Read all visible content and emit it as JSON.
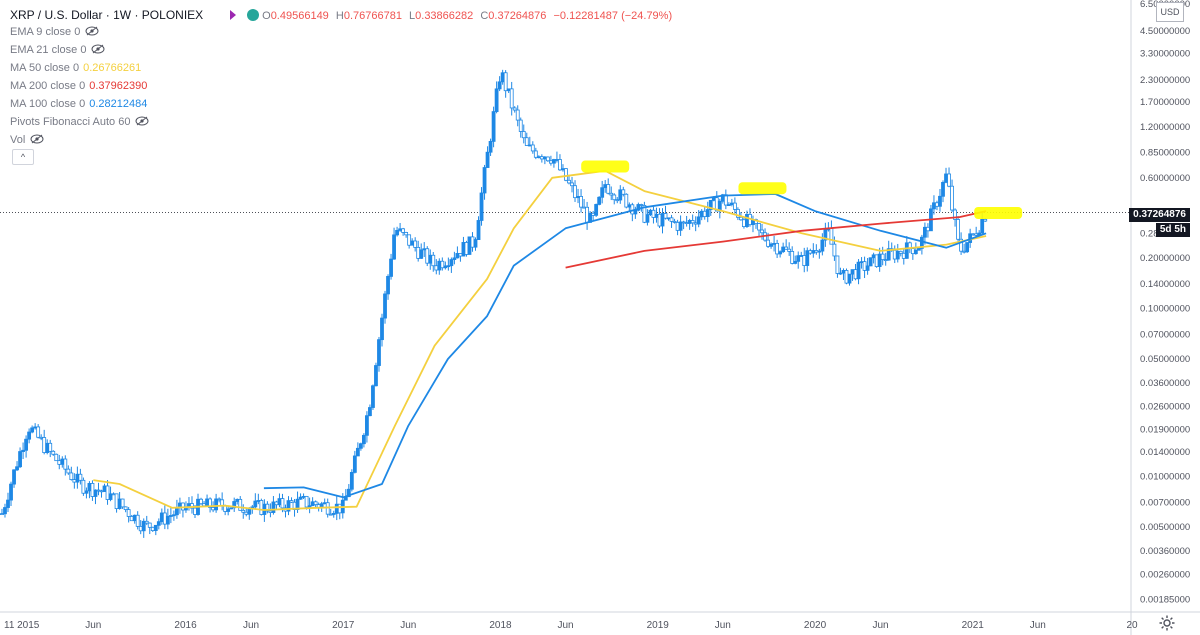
{
  "header": {
    "symbol": "XRP / U.S. Dollar · 1W · POLONIEX",
    "open_label": "O",
    "open": "0.49566149",
    "high_label": "H",
    "high": "0.76766781",
    "low_label": "L",
    "low": "0.33866282",
    "close_label": "C",
    "close": "0.37264876",
    "change": "−0.12281487 (−24.79%)"
  },
  "indicators": [
    {
      "label": "EMA 9 close 0",
      "value": "",
      "color": "#787b86",
      "hidden": true
    },
    {
      "label": "EMA 21 close 0",
      "value": "",
      "color": "#787b86",
      "hidden": true
    },
    {
      "label": "MA 50 close 0",
      "value": "0.26766261",
      "color": "#f4d03f",
      "hidden": false
    },
    {
      "label": "MA 200 close 0",
      "value": "0.37962390",
      "color": "#e53935",
      "hidden": false
    },
    {
      "label": "MA 100 close 0",
      "value": "0.28212484",
      "color": "#1e88e5",
      "hidden": false
    },
    {
      "label": "Pivots Fibonacci Auto 60",
      "value": "",
      "color": "#787b86",
      "hidden": true
    },
    {
      "label": "Vol",
      "value": "",
      "color": "#787b86",
      "hidden": true
    }
  ],
  "collapse_label": "^",
  "currency_label": "USD",
  "last_price_tag": "0.37264876",
  "countdown_tag": "5d 5h",
  "colors": {
    "candle": "#1e88e5",
    "ma50": "#f4d03f",
    "ma100": "#1e88e5",
    "ma200": "#e53935",
    "highlight": "#ffff00"
  },
  "chart_data": {
    "type": "candlestick",
    "title": "XRP / U.S. Dollar · 1W · POLONIEX",
    "y_scale": "log",
    "ylim": [
      0.0016,
      6.5
    ],
    "y_ticks": [
      "6.50000000",
      "4.50000000",
      "3.30000000",
      "2.30000000",
      "1.70000000",
      "1.20000000",
      "0.85000000",
      "0.60000000",
      "0.28000000",
      "0.20000000",
      "0.14000000",
      "0.10000000",
      "0.07000000",
      "0.05000000",
      "0.03600000",
      "0.02600000",
      "0.01900000",
      "0.01400000",
      "0.01000000",
      "0.00700000",
      "0.00500000",
      "0.00360000",
      "0.00260000",
      "0.00185000"
    ],
    "x_ticks": [
      "11",
      "2015",
      "Jun",
      "2016",
      "Jun",
      "2017",
      "Jun",
      "2018",
      "Jun",
      "2019",
      "Jun",
      "2020",
      "Jun",
      "2021",
      "Jun",
      "20"
    ],
    "last_close": 0.37264876,
    "price_path": [
      {
        "date": "2014-11",
        "close": 0.006
      },
      {
        "date": "2014-12",
        "close": 0.011
      },
      {
        "date": "2015-01",
        "close": 0.02
      },
      {
        "date": "2015-03",
        "close": 0.013
      },
      {
        "date": "2015-05",
        "close": 0.009
      },
      {
        "date": "2015-07",
        "close": 0.008
      },
      {
        "date": "2015-10",
        "close": 0.005
      },
      {
        "date": "2016-01",
        "close": 0.0065
      },
      {
        "date": "2016-04",
        "close": 0.0068
      },
      {
        "date": "2016-07",
        "close": 0.0065
      },
      {
        "date": "2016-10",
        "close": 0.007
      },
      {
        "date": "2017-01",
        "close": 0.0065
      },
      {
        "date": "2017-03",
        "close": 0.025
      },
      {
        "date": "2017-05",
        "close": 0.3
      },
      {
        "date": "2017-08",
        "close": 0.18
      },
      {
        "date": "2017-11",
        "close": 0.25
      },
      {
        "date": "2018-01",
        "close": 2.6
      },
      {
        "date": "2018-03",
        "close": 0.9
      },
      {
        "date": "2018-05",
        "close": 0.8
      },
      {
        "date": "2018-08",
        "close": 0.32
      },
      {
        "date": "2018-09",
        "close": 0.55
      },
      {
        "date": "2018-12",
        "close": 0.36
      },
      {
        "date": "2019-03",
        "close": 0.31
      },
      {
        "date": "2019-06",
        "close": 0.45
      },
      {
        "date": "2019-09",
        "close": 0.27
      },
      {
        "date": "2019-12",
        "close": 0.19
      },
      {
        "date": "2020-02",
        "close": 0.28
      },
      {
        "date": "2020-03",
        "close": 0.15
      },
      {
        "date": "2020-06",
        "close": 0.2
      },
      {
        "date": "2020-09",
        "close": 0.24
      },
      {
        "date": "2020-11",
        "close": 0.62
      },
      {
        "date": "2020-12",
        "close": 0.22
      },
      {
        "date": "2021-01",
        "close": 0.27
      },
      {
        "date": "2021-02",
        "close": 0.37
      }
    ],
    "series": [
      {
        "name": "MA 50 close 0",
        "points": [
          {
            "date": "2015-06",
            "value": 0.0095
          },
          {
            "date": "2015-08",
            "value": 0.009
          },
          {
            "date": "2015-12",
            "value": 0.0065
          },
          {
            "date": "2016-04",
            "value": 0.0067
          },
          {
            "date": "2016-07",
            "value": 0.0063
          },
          {
            "date": "2016-11",
            "value": 0.0065
          },
          {
            "date": "2017-02",
            "value": 0.0066
          },
          {
            "date": "2017-05",
            "value": 0.02
          },
          {
            "date": "2017-08",
            "value": 0.06
          },
          {
            "date": "2017-12",
            "value": 0.15
          },
          {
            "date": "2018-02",
            "value": 0.3
          },
          {
            "date": "2018-05",
            "value": 0.6
          },
          {
            "date": "2018-09",
            "value": 0.66
          },
          {
            "date": "2018-12",
            "value": 0.5
          },
          {
            "date": "2019-06",
            "value": 0.38
          },
          {
            "date": "2019-12",
            "value": 0.28
          },
          {
            "date": "2020-06",
            "value": 0.22
          },
          {
            "date": "2020-11",
            "value": 0.24
          },
          {
            "date": "2021-02",
            "value": 0.27
          }
        ]
      },
      {
        "name": "MA 100 close 0",
        "points": [
          {
            "date": "2016-07",
            "value": 0.0085
          },
          {
            "date": "2016-10",
            "value": 0.0086
          },
          {
            "date": "2017-01",
            "value": 0.0075
          },
          {
            "date": "2017-04",
            "value": 0.009
          },
          {
            "date": "2017-06",
            "value": 0.02
          },
          {
            "date": "2017-09",
            "value": 0.05
          },
          {
            "date": "2017-12",
            "value": 0.09
          },
          {
            "date": "2018-02",
            "value": 0.18
          },
          {
            "date": "2018-06",
            "value": 0.3
          },
          {
            "date": "2018-12",
            "value": 0.4
          },
          {
            "date": "2019-06",
            "value": 0.47
          },
          {
            "date": "2019-10",
            "value": 0.48
          },
          {
            "date": "2020-01",
            "value": 0.38
          },
          {
            "date": "2020-06",
            "value": 0.29
          },
          {
            "date": "2020-11",
            "value": 0.23
          },
          {
            "date": "2021-02",
            "value": 0.28
          }
        ]
      },
      {
        "name": "MA 200 close 0",
        "points": [
          {
            "date": "2018-06",
            "value": 0.175
          },
          {
            "date": "2018-12",
            "value": 0.22
          },
          {
            "date": "2019-06",
            "value": 0.25
          },
          {
            "date": "2019-12",
            "value": 0.29
          },
          {
            "date": "2020-06",
            "value": 0.32
          },
          {
            "date": "2020-12",
            "value": 0.35
          },
          {
            "date": "2021-02",
            "value": 0.38
          }
        ]
      }
    ],
    "annotations": [
      {
        "type": "highlight",
        "date": "2018-09",
        "value": 0.7
      },
      {
        "type": "highlight",
        "date": "2019-09",
        "value": 0.52
      },
      {
        "type": "highlight",
        "date": "2021-03",
        "value": 0.37
      }
    ],
    "grid": false,
    "legend": "top-left"
  }
}
